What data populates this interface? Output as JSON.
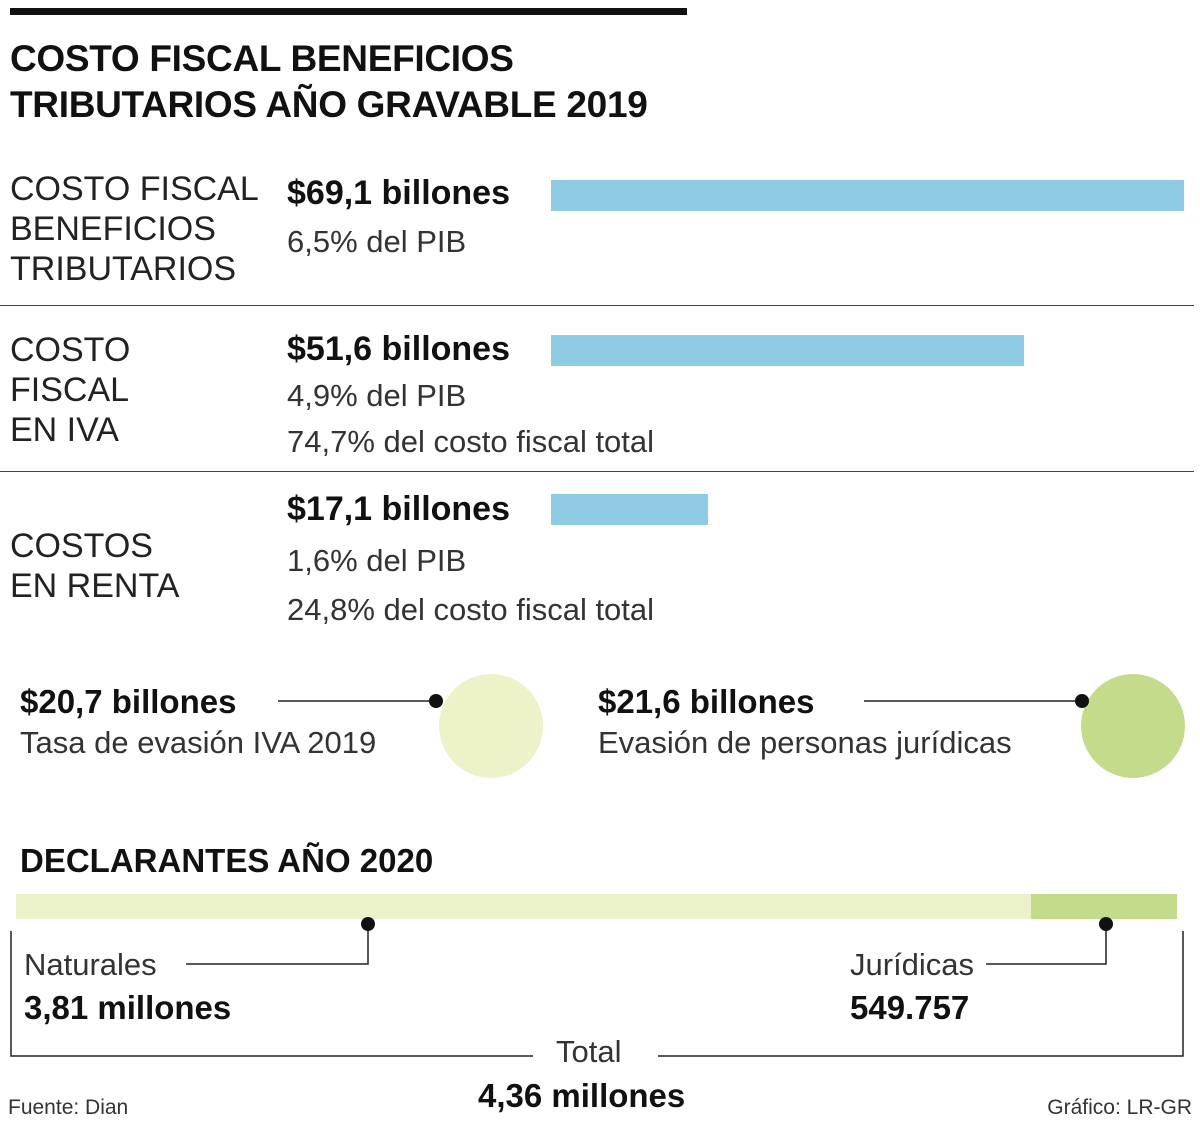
{
  "title_line1": "COSTO FISCAL BENEFICIOS",
  "title_line2": "TRIBUTARIOS AÑO GRAVABLE 2019",
  "chart_data": {
    "type": "bar",
    "orientation": "horizontal",
    "unit": "billones de pesos",
    "categories": [
      "COSTO FISCAL BENEFICIOS TRIBUTARIOS",
      "COSTO FISCAL EN IVA",
      "COSTOS EN RENTA"
    ],
    "values": [
      69.1,
      51.6,
      17.1
    ],
    "xlim": [
      0,
      69.1
    ],
    "rows": [
      {
        "label_lines": [
          "COSTO FISCAL",
          "BENEFICIOS",
          "TRIBUTARIOS"
        ],
        "value": 69.1,
        "value_label": "$69,1 billones",
        "details": [
          "6,5% del PIB"
        ]
      },
      {
        "label_lines": [
          "COSTO",
          "FISCAL",
          "EN IVA"
        ],
        "value": 51.6,
        "value_label": "$51,6 billones",
        "details": [
          "4,9% del PIB",
          "74,7% del costo fiscal total"
        ]
      },
      {
        "label_lines": [
          "COSTOS",
          "EN RENTA"
        ],
        "value": 17.1,
        "value_label": "$17,1 billones",
        "details": [
          "1,6% del PIB",
          "24,8% del costo fiscal total"
        ]
      }
    ]
  },
  "evasion": [
    {
      "value": 20.7,
      "value_label": "$20,7 billones",
      "description": "Tasa de evasión IVA 2019",
      "color": "#edf2c9"
    },
    {
      "value": 21.6,
      "value_label": "$21,6 billones",
      "description": "Evasión de personas jurídicas",
      "color": "#c5db8c"
    }
  ],
  "declarantes": {
    "title": "DECLARANTES AÑO 2020",
    "naturales_label": "Naturales",
    "naturales_value": "3,81 millones",
    "naturales_count": 3810000,
    "juridicas_label": "Jurídicas",
    "juridicas_value": "549.757",
    "juridicas_count": 549757,
    "total_label": "Total",
    "total_value": "4,36 millones",
    "colors": {
      "naturales": "#ebf2c9",
      "juridicas": "#c5db8c"
    }
  },
  "bar_color": "#8ecce3",
  "source": "Fuente: Dian",
  "credit": "Gráfico: LR-GR"
}
